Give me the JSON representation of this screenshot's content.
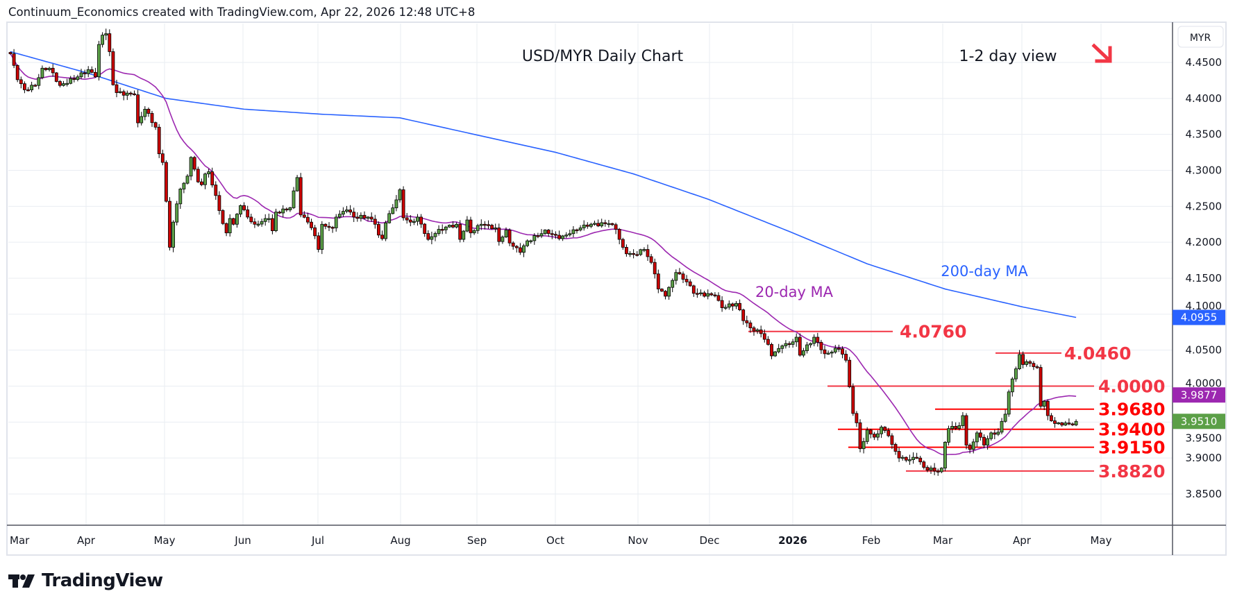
{
  "header": {
    "attribution": "Continuum_Economics created with TradingView.com, Apr 22, 2026 12:48 UTC+8"
  },
  "branding": {
    "logo_text": "TradingView"
  },
  "colors": {
    "up": "#5b9f47",
    "down": "#cc0000",
    "ma20": "#9c27b0",
    "ma200": "#2962ff",
    "level_pink": "#f23645",
    "level_red": "#ff0000"
  },
  "chart_data": {
    "type": "candlestick",
    "title": "USD/MYR Daily Chart",
    "subtitle": "1-2 day view",
    "direction_icon": "arrow-down-right-icon",
    "currency": "MYR",
    "ylim": [
      3.8,
      4.51
    ],
    "y_ticks": [
      "4.4500",
      "4.4000",
      "4.3500",
      "4.3000",
      "4.2500",
      "4.2000",
      "4.1500",
      "4.1000",
      "4.0500",
      "4.0000",
      "3.9500",
      "3.9000",
      "3.8500"
    ],
    "x_ticks": [
      "Mar",
      "Apr",
      "May",
      "Jun",
      "Jul",
      "Aug",
      "Sep",
      "Oct",
      "Nov",
      "Dec",
      "2026",
      "Feb",
      "Mar",
      "Apr",
      "May"
    ],
    "grid": true,
    "close_anchors_by_trading_day": [
      [
        0,
        4.462
      ],
      [
        2,
        4.426
      ],
      [
        4,
        4.412
      ],
      [
        7,
        4.418
      ],
      [
        9,
        4.442
      ],
      [
        11,
        4.442
      ],
      [
        14,
        4.418
      ],
      [
        19,
        4.43
      ],
      [
        22,
        4.44
      ],
      [
        24,
        4.43
      ],
      [
        25,
        4.475
      ],
      [
        26,
        4.488
      ],
      [
        27,
        4.49
      ],
      [
        28,
        4.465
      ],
      [
        29,
        4.419
      ],
      [
        30,
        4.408
      ],
      [
        35,
        4.405
      ],
      [
        36,
        4.366
      ],
      [
        38,
        4.385
      ],
      [
        41,
        4.36
      ],
      [
        42,
        4.323
      ],
      [
        43,
        4.311
      ],
      [
        44,
        4.257
      ],
      [
        45,
        4.193
      ],
      [
        46,
        4.228
      ],
      [
        48,
        4.274
      ],
      [
        50,
        4.292
      ],
      [
        51,
        4.318
      ],
      [
        53,
        4.284
      ],
      [
        54,
        4.28
      ],
      [
        55,
        4.295
      ],
      [
        56,
        4.298
      ],
      [
        58,
        4.265
      ],
      [
        60,
        4.226
      ],
      [
        61,
        4.213
      ],
      [
        62,
        4.233
      ],
      [
        63,
        4.225
      ],
      [
        65,
        4.251
      ],
      [
        67,
        4.235
      ],
      [
        69,
        4.225
      ],
      [
        73,
        4.233
      ],
      [
        74,
        4.216
      ],
      [
        75,
        4.242
      ],
      [
        78,
        4.245
      ],
      [
        79,
        4.248
      ],
      [
        81,
        4.29
      ],
      [
        82,
        4.238
      ],
      [
        84,
        4.228
      ],
      [
        86,
        4.209
      ],
      [
        87,
        4.19
      ],
      [
        88,
        4.225
      ],
      [
        91,
        4.22
      ],
      [
        92,
        4.235
      ],
      [
        95,
        4.245
      ],
      [
        97,
        4.235
      ],
      [
        101,
        4.235
      ],
      [
        103,
        4.225
      ],
      [
        104,
        4.21
      ],
      [
        105,
        4.205
      ],
      [
        106,
        4.227
      ],
      [
        109,
        4.259
      ],
      [
        110,
        4.273
      ],
      [
        111,
        4.234
      ],
      [
        113,
        4.228
      ],
      [
        115,
        4.235
      ],
      [
        118,
        4.204
      ],
      [
        121,
        4.218
      ],
      [
        126,
        4.225
      ],
      [
        127,
        4.204
      ],
      [
        129,
        4.231
      ],
      [
        130,
        4.213
      ],
      [
        133,
        4.225
      ],
      [
        137,
        4.22
      ],
      [
        138,
        4.201
      ],
      [
        140,
        4.217
      ],
      [
        141,
        4.199
      ],
      [
        144,
        4.186
      ],
      [
        146,
        4.202
      ],
      [
        150,
        4.212
      ],
      [
        151,
        4.217
      ],
      [
        155,
        4.205
      ],
      [
        158,
        4.212
      ],
      [
        162,
        4.224
      ],
      [
        169,
        4.226
      ],
      [
        171,
        4.218
      ],
      [
        172,
        4.204
      ],
      [
        173,
        4.193
      ],
      [
        174,
        4.184
      ],
      [
        176,
        4.183
      ],
      [
        179,
        4.19
      ],
      [
        180,
        4.18
      ],
      [
        181,
        4.172
      ],
      [
        182,
        4.156
      ],
      [
        183,
        4.135
      ],
      [
        185,
        4.125
      ],
      [
        187,
        4.147
      ],
      [
        188,
        4.158
      ],
      [
        191,
        4.145
      ],
      [
        193,
        4.129
      ],
      [
        199,
        4.126
      ],
      [
        200,
        4.119
      ],
      [
        201,
        4.109
      ],
      [
        205,
        4.115
      ],
      [
        206,
        4.106
      ],
      [
        207,
        4.091
      ],
      [
        209,
        4.081
      ],
      [
        212,
        4.073
      ],
      [
        214,
        4.058
      ],
      [
        215,
        4.042
      ],
      [
        218,
        4.056
      ],
      [
        220,
        4.058
      ],
      [
        222,
        4.068
      ],
      [
        223,
        4.043
      ],
      [
        227,
        4.068
      ],
      [
        230,
        4.045
      ],
      [
        234,
        4.052
      ],
      [
        236,
        4.036
      ],
      [
        237,
        3.999
      ],
      [
        238,
        3.962
      ],
      [
        239,
        3.949
      ],
      [
        240,
        3.913
      ],
      [
        241,
        3.923
      ],
      [
        242,
        3.939
      ],
      [
        244,
        3.929
      ],
      [
        246,
        3.943
      ],
      [
        248,
        3.931
      ],
      [
        249,
        3.919
      ],
      [
        251,
        3.9
      ],
      [
        253,
        3.897
      ],
      [
        256,
        3.9
      ],
      [
        258,
        3.887
      ],
      [
        262,
        3.881
      ],
      [
        263,
        3.886
      ],
      [
        264,
        3.922
      ],
      [
        265,
        3.941
      ],
      [
        268,
        3.945
      ],
      [
        269,
        3.959
      ],
      [
        270,
        3.918
      ],
      [
        271,
        3.912
      ],
      [
        273,
        3.935
      ],
      [
        275,
        3.918
      ],
      [
        277,
        3.935
      ],
      [
        279,
        3.936
      ],
      [
        280,
        3.951
      ],
      [
        281,
        3.961
      ],
      [
        282,
        3.992
      ],
      [
        283,
        4.01
      ],
      [
        284,
        4.024
      ],
      [
        285,
        4.044
      ],
      [
        286,
        4.03
      ],
      [
        287,
        4.034
      ],
      [
        289,
        4.027
      ],
      [
        290,
        4.026
      ],
      [
        291,
        3.972
      ],
      [
        292,
        3.979
      ],
      [
        293,
        3.959
      ],
      [
        295,
        3.948
      ],
      [
        296,
        3.949
      ],
      [
        300,
        3.946
      ],
      [
        301,
        3.951
      ]
    ],
    "ma200_anchors_by_trading_day": [
      [
        0,
        4.465
      ],
      [
        22,
        4.435
      ],
      [
        44,
        4.4
      ],
      [
        66,
        4.385
      ],
      [
        88,
        4.378
      ],
      [
        110,
        4.373
      ],
      [
        131,
        4.35
      ],
      [
        154,
        4.325
      ],
      [
        176,
        4.295
      ],
      [
        197,
        4.26
      ],
      [
        220,
        4.215
      ],
      [
        242,
        4.17
      ],
      [
        264,
        4.135
      ],
      [
        286,
        4.11
      ],
      [
        301,
        4.0955
      ]
    ],
    "series_labels": {
      "ma20": "20-day MA",
      "ma200": "200-day MA"
    },
    "levels": [
      {
        "value": 4.076,
        "label": "4.0760",
        "color": "pink"
      },
      {
        "value": 4.046,
        "label": "4.0460",
        "color": "pink"
      },
      {
        "value": 4.0,
        "label": "4.0000",
        "color": "pink"
      },
      {
        "value": 3.968,
        "label": "3.9680",
        "color": "red"
      },
      {
        "value": 3.94,
        "label": "3.9400",
        "color": "red"
      },
      {
        "value": 3.915,
        "label": "3.9150",
        "color": "red"
      },
      {
        "value": 3.882,
        "label": "3.8820",
        "color": "pink"
      }
    ],
    "price_tags": [
      {
        "value": 4.0955,
        "label": "4.0955",
        "series": "ma200"
      },
      {
        "value": 3.9877,
        "label": "3.9877",
        "series": "ma20"
      },
      {
        "value": 3.951,
        "label": "3.9510",
        "series": "last"
      }
    ]
  }
}
